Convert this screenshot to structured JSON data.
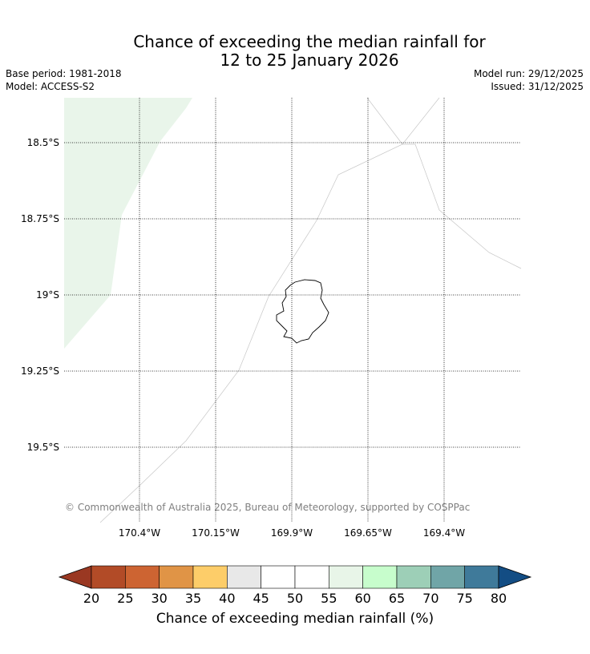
{
  "header": {
    "title_line1": "Chance of exceeding the median rainfall for",
    "title_line2": "12 to 25 January 2026",
    "base_period": "Base period: 1981-2018",
    "model": "Model: ACCESS-S2",
    "model_run": "Model run: 29/12/2025",
    "issued": "Issued: 31/12/2025"
  },
  "map": {
    "lat_labels": [
      "18.5°S",
      "18.75°S",
      "19°S",
      "19.25°S",
      "19.5°S"
    ],
    "lon_labels": [
      "170.4°W",
      "170.15°W",
      "169.9°W",
      "169.65°W",
      "169.4°W"
    ],
    "copyright": "© Commonwealth of Australia 2025, Bureau of Meteorology, supported by COSPPac",
    "shaded_region_color": "#e9f5ea",
    "shaded_region_percent": "55-60"
  },
  "colorbar": {
    "label": "Chance of exceeding median rainfall (%)",
    "ticks": [
      "20",
      "25",
      "30",
      "35",
      "40",
      "45",
      "50",
      "55",
      "60",
      "65",
      "70",
      "75",
      "80"
    ],
    "under_color": "#9a3822",
    "over_color": "#134d84",
    "colors": [
      "#b24b27",
      "#cd6432",
      "#e09446",
      "#fdcd69",
      "#e8e8e8",
      "#ffffff",
      "#ffffff",
      "#e8f5e8",
      "#c7fdcc",
      "#9dcfb7",
      "#70a5a7",
      "#3f7a9a"
    ]
  }
}
